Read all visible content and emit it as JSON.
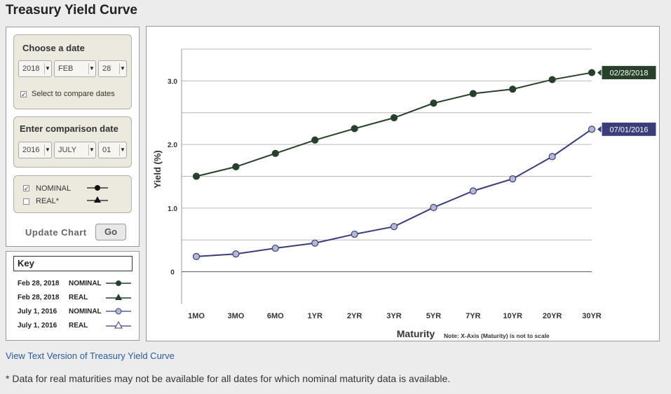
{
  "page_title": "Treasury Yield Curve",
  "date_box": {
    "title": "Choose a date",
    "year": "2018",
    "month": "FEB",
    "day": "28",
    "compare_label": "Select to compare dates",
    "compare_checked": "✓"
  },
  "comparison_box": {
    "title": "Enter comparison date",
    "year": "2016",
    "month": "JULY",
    "day": "01"
  },
  "type_box": {
    "nominal_label": "NOMINAL",
    "nominal_checked": "✓",
    "real_label": "REAL*",
    "real_checked": ""
  },
  "update": {
    "label": "Update Chart",
    "button": "Go"
  },
  "key": {
    "title": "Key",
    "rows": [
      {
        "date": "Feb 28, 2018",
        "type": "NOMINAL",
        "color": "#27402a",
        "marker": "filled-circle"
      },
      {
        "date": "Feb 28, 2018",
        "type": "REAL",
        "color": "#27402a",
        "marker": "filled-triangle"
      },
      {
        "date": "July 1, 2016",
        "type": "NOMINAL",
        "color": "#3a3d7a",
        "marker": "open-circle"
      },
      {
        "date": "July 1, 2016",
        "type": "REAL",
        "color": "#3a3d7a",
        "marker": "open-triangle"
      }
    ]
  },
  "chart_data": {
    "type": "line",
    "categories": [
      "1MO",
      "3MO",
      "6MO",
      "1YR",
      "2YR",
      "3YR",
      "5YR",
      "7YR",
      "10YR",
      "20YR",
      "30YR"
    ],
    "series": [
      {
        "name": "02/28/2018",
        "color": "#27402a",
        "marker_fill": "#27402a",
        "values": [
          1.5,
          1.65,
          1.86,
          2.07,
          2.25,
          2.42,
          2.65,
          2.8,
          2.87,
          3.02,
          3.13
        ]
      },
      {
        "name": "07/01/2016",
        "color": "#3a3d7a",
        "marker_fill": "#b4b8d2",
        "values": [
          0.24,
          0.28,
          0.37,
          0.45,
          0.59,
          0.71,
          1.01,
          1.27,
          1.46,
          1.81,
          2.24
        ]
      }
    ],
    "xlabel": "Maturity",
    "ylabel": "Yield (%)",
    "note": "Note: X-Axis (Maturity) is not to scale",
    "yticks": [
      {
        "value": 0,
        "label": "0"
      },
      {
        "value": 1,
        "label": "1.0"
      },
      {
        "value": 2,
        "label": "2.0"
      },
      {
        "value": 3,
        "label": "3.0"
      }
    ],
    "ylim": [
      -0.5,
      3.5
    ],
    "grid": true,
    "grid_step": 0.5
  },
  "text_version_link": "View Text Version of Treasury Yield Curve",
  "footnote": "* Data for real maturities may not be available for all dates for which nominal maturity data is available."
}
